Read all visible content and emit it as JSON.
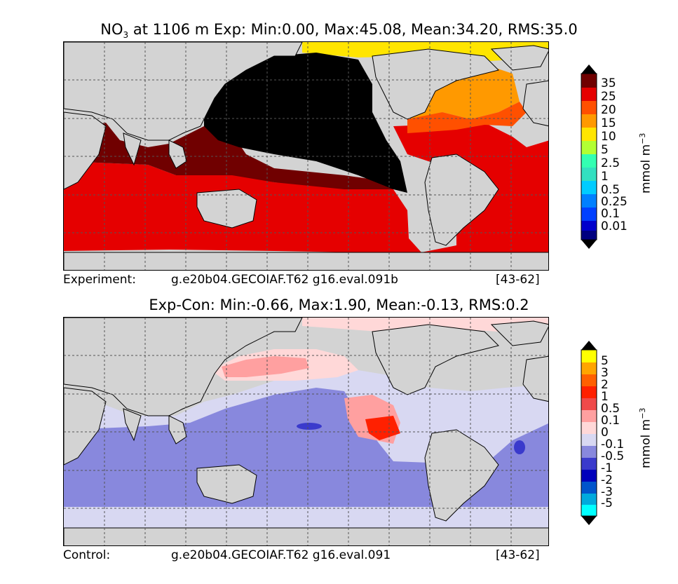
{
  "experiment_panel": {
    "title_species": "NO",
    "title_sub": "3",
    "title_rest": " at 1106 m Exp: Min:0.00, Max:45.08, Mean:34.20, RMS:35.0",
    "footer_left": "Experiment:",
    "footer_case": "g.e20b04.GECOIAF.T62 g16.eval.091b",
    "footer_years": "[43-62]",
    "colorbar_labels": [
      "35",
      "25",
      "20",
      "15",
      "10",
      "5",
      "2.5",
      "1",
      "0.5",
      "0.25",
      "0.1",
      "0.01"
    ],
    "colorbar_colors": [
      "#000000",
      "#700000",
      "#e50000",
      "#ff5000",
      "#ff9900",
      "#ffe500",
      "#b2ff33",
      "#33ffb2",
      "#00ccff",
      "#0080ff",
      "#0040ff",
      "#0000cc",
      "#000080"
    ],
    "units": "mmol m",
    "units_exp": "−3"
  },
  "difference_panel": {
    "title": "Exp-Con: Min:-0.66, Max:1.90, Mean:-0.13, RMS:0.2",
    "footer_left": "Control:",
    "footer_case": "g.e20b04.GECOIAF.T62 g16.eval.091",
    "footer_years": "[43-62]",
    "colorbar_labels": [
      "5",
      "3",
      "2",
      "1",
      "0.5",
      "0.1",
      "0",
      "-0.1",
      "-0.5",
      "-1",
      "-2",
      "-3",
      "-5"
    ],
    "colorbar_colors": [
      "#000000",
      "#ffff00",
      "#ffa500",
      "#ff6000",
      "#ff2000",
      "#ef4a4a",
      "#ffa0a0",
      "#ffd8d8",
      "#d8d8f2",
      "#8888dd",
      "#3a3acc",
      "#0000bb",
      "#0055cc",
      "#00aadd",
      "#00ffff",
      "#000000"
    ],
    "units": "mmol m",
    "units_exp": "−3"
  },
  "map_legend_colors": {
    "land": "#d3d3d3",
    "missing": "#ffffff",
    "grid": "#555555"
  }
}
